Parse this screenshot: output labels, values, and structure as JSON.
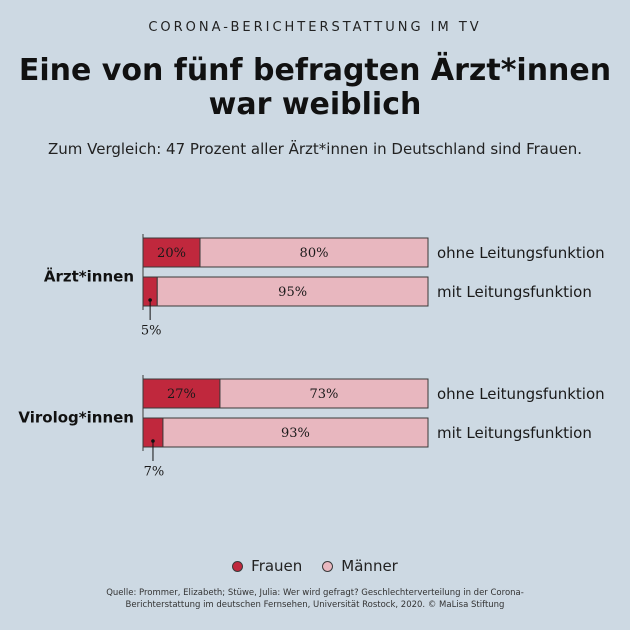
{
  "header": {
    "kicker": "CORONA-BERICHTERSTATTUNG IM TV",
    "title_line1": "Eine von fünf befragten Ärzt*innen",
    "title_line2": "war weiblich",
    "subtitle": "Zum Vergleich: 47 Prozent aller Ärzt*innen in Deutschland sind Frauen."
  },
  "colors": {
    "background": "#cdd9e3",
    "frauen": "#c0283d",
    "maenner": "#e8b7bf",
    "border": "#3a3a3a"
  },
  "chart_data": {
    "type": "bar",
    "stacked": true,
    "orientation": "horizontal",
    "groups": [
      {
        "label": "Ärzt*innen",
        "rows": [
          {
            "label": "ohne Leitungsfunktion",
            "frauen": 20,
            "maenner": 80,
            "frauen_label": "20%",
            "maenner_label": "80%",
            "frauen_label_outside": false
          },
          {
            "label": "mit Leitungsfunktion",
            "frauen": 5,
            "maenner": 95,
            "frauen_label": "5%",
            "maenner_label": "95%",
            "frauen_label_outside": true
          }
        ]
      },
      {
        "label": "Virolog*innen",
        "rows": [
          {
            "label": "ohne Leitungsfunktion",
            "frauen": 27,
            "maenner": 73,
            "frauen_label": "27%",
            "maenner_label": "73%",
            "frauen_label_outside": false
          },
          {
            "label": "mit Leitungsfunktion",
            "frauen": 7,
            "maenner": 93,
            "frauen_label": "7%",
            "maenner_label": "93%",
            "frauen_label_outside": true
          }
        ]
      }
    ],
    "legend": [
      {
        "name": "Frauen",
        "color": "#c0283d"
      },
      {
        "name": "Männer",
        "color": "#e8b7bf"
      }
    ],
    "legend_position": "bottom-center"
  },
  "footer": {
    "source_line1": "Quelle: Prommer, Elizabeth; Stüwe, Julia: Wer wird gefragt? Geschlechterverteilung in der Corona-",
    "source_line2": "Berichterstattung im deutschen Fernsehen, Universität Rostock, 2020. © MaLisa Stiftung"
  }
}
